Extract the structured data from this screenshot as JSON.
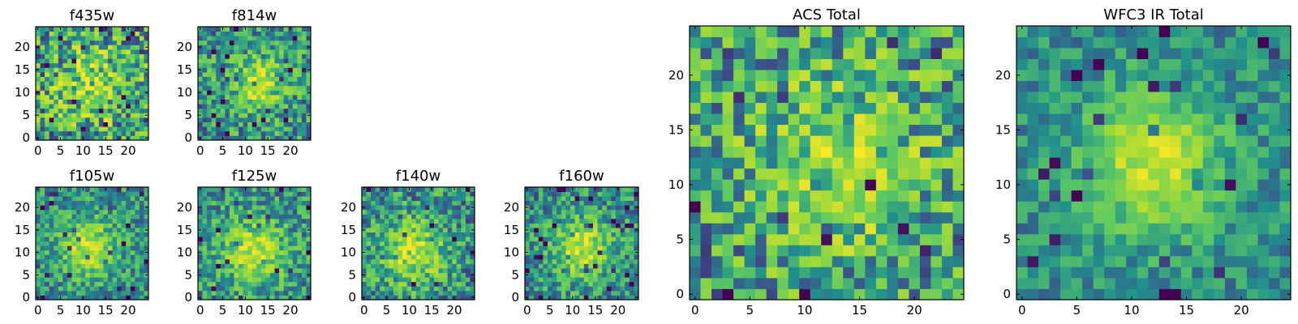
{
  "colormap": [
    "#440154",
    "#3b528b",
    "#21918c",
    "#5ec962",
    "#a5db36",
    "#fde725"
  ],
  "chart_data": [
    {
      "type": "heatmap",
      "title": "f435w",
      "x_ticks": [
        "0",
        "5",
        "10",
        "15",
        "20"
      ],
      "y_ticks": [
        "0",
        "5",
        "10",
        "15",
        "20"
      ],
      "grid_size": 25,
      "pattern": "noise",
      "center": [
        12,
        12
      ],
      "peak": 0.3,
      "spread": 6.0,
      "noise": 0.45,
      "seed": 11
    },
    {
      "type": "heatmap",
      "title": "f814w",
      "x_ticks": [
        "0",
        "5",
        "10",
        "15",
        "20"
      ],
      "y_ticks": [
        "0",
        "5",
        "10",
        "15",
        "20"
      ],
      "grid_size": 25,
      "pattern": "source",
      "center": [
        13,
        12
      ],
      "peak": 0.5,
      "spread": 4.5,
      "noise": 0.35,
      "seed": 23
    },
    {
      "type": "heatmap",
      "title": "f105w",
      "x_ticks": [
        "0",
        "5",
        "10",
        "15",
        "20"
      ],
      "y_ticks": [
        "0",
        "5",
        "10",
        "15",
        "20"
      ],
      "grid_size": 25,
      "pattern": "source",
      "center": [
        11,
        11
      ],
      "peak": 0.65,
      "spread": 4.5,
      "noise": 0.3,
      "seed": 37
    },
    {
      "type": "heatmap",
      "title": "f125w",
      "x_ticks": [
        "0",
        "5",
        "10",
        "15",
        "20"
      ],
      "y_ticks": [
        "0",
        "5",
        "10",
        "15",
        "20"
      ],
      "grid_size": 25,
      "pattern": "source",
      "center": [
        12,
        10
      ],
      "peak": 0.6,
      "spread": 5.0,
      "noise": 0.32,
      "seed": 41
    },
    {
      "type": "heatmap",
      "title": "f140w",
      "x_ticks": [
        "0",
        "5",
        "10",
        "15",
        "20"
      ],
      "y_ticks": [
        "0",
        "5",
        "10",
        "15",
        "20"
      ],
      "grid_size": 25,
      "pattern": "source",
      "center": [
        11,
        10
      ],
      "peak": 0.6,
      "spread": 5.0,
      "noise": 0.36,
      "seed": 53
    },
    {
      "type": "heatmap",
      "title": "f160w",
      "x_ticks": [
        "0",
        "5",
        "10",
        "15",
        "20"
      ],
      "y_ticks": [
        "0",
        "5",
        "10",
        "15",
        "20"
      ],
      "grid_size": 25,
      "pattern": "source",
      "center": [
        12,
        11
      ],
      "peak": 0.65,
      "spread": 4.5,
      "noise": 0.32,
      "seed": 67
    },
    {
      "type": "heatmap",
      "title": "ACS Total",
      "x_ticks": [
        "0",
        "5",
        "10",
        "15",
        "20"
      ],
      "y_ticks": [
        "0",
        "5",
        "10",
        "15",
        "20"
      ],
      "grid_size": 25,
      "pattern": "noise",
      "center": [
        13,
        12
      ],
      "peak": 0.35,
      "spread": 6.0,
      "noise": 0.4,
      "seed": 79
    },
    {
      "type": "heatmap",
      "title": "WFC3 IR Total",
      "x_ticks": [
        "0",
        "5",
        "10",
        "15",
        "20"
      ],
      "y_ticks": [
        "0",
        "5",
        "10",
        "15",
        "20"
      ],
      "grid_size": 25,
      "pattern": "source",
      "center": [
        12,
        12
      ],
      "peak": 0.7,
      "spread": 4.2,
      "noise": 0.22,
      "seed": 97
    }
  ]
}
